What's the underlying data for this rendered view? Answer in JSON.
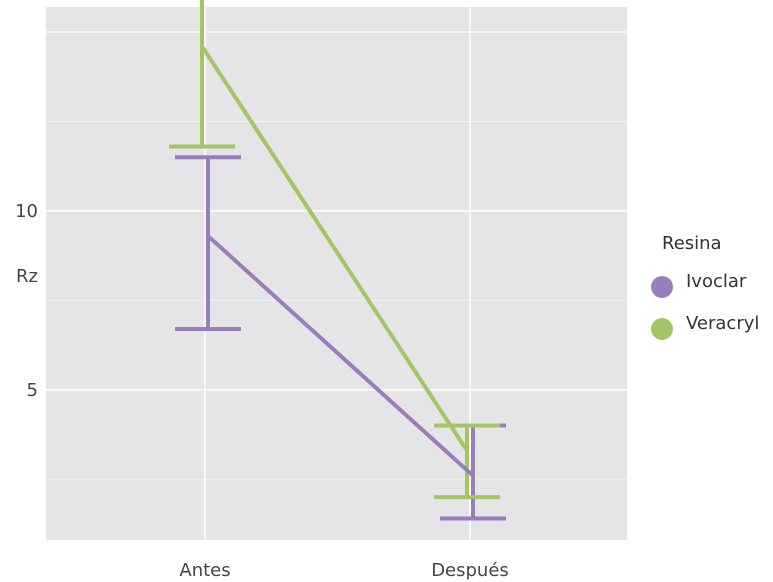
{
  "chart_data": {
    "type": "line",
    "title": "",
    "xlabel": "",
    "ylabel": "Rz",
    "categories": [
      "Antes",
      "Después"
    ],
    "ylim": [
      0.8,
      15.7
    ],
    "yticks": [
      5,
      10
    ],
    "grid": true,
    "legend": {
      "title": "Resina",
      "position": "right"
    },
    "series": [
      {
        "name": "Ivoclar",
        "color": "#9a7dbb",
        "values": [
          9.3,
          2.6
        ],
        "error_low": [
          6.7,
          1.4
        ],
        "error_high": [
          11.5,
          4.0
        ]
      },
      {
        "name": "Veracryl",
        "color": "#a5c463",
        "values": [
          14.6,
          3.3
        ],
        "error_low": [
          11.8,
          2.0
        ],
        "error_high": [
          16.0,
          4.0
        ]
      }
    ]
  }
}
